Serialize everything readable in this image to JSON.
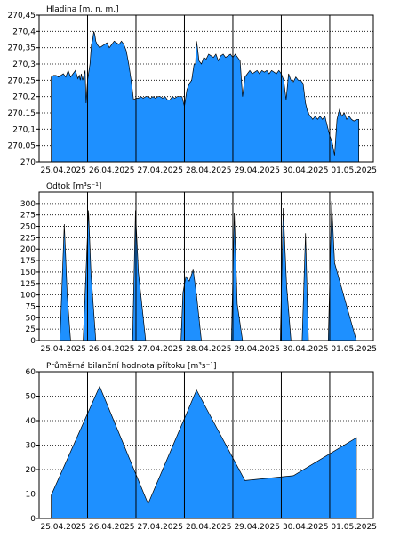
{
  "chart_data": [
    {
      "type": "area",
      "title": "Hladina [m. n. m.]",
      "ylim": [
        270,
        270.45
      ],
      "yticks": [
        270,
        270.05,
        270.1,
        270.15,
        270.2,
        270.25,
        270.3,
        270.35,
        270.4,
        270.45
      ],
      "ytick_labels": [
        "270",
        "270,05",
        "270,1",
        "270,15",
        "270,2",
        "270,25",
        "270,3",
        "270,35",
        "270,4",
        "270,45"
      ],
      "x_labels": [
        "25.04.2025",
        "26.04.2025",
        "27.04.2025",
        "28.04.2025",
        "29.04.2025",
        "30.04.2025",
        "01.05.2025"
      ],
      "xlim": [
        -0.25,
        6.65
      ],
      "grid": true,
      "fill_color": "#1e90ff",
      "x": [
        0.0,
        0.05,
        0.1,
        0.15,
        0.2,
        0.25,
        0.3,
        0.35,
        0.4,
        0.45,
        0.5,
        0.55,
        0.58,
        0.6,
        0.62,
        0.65,
        0.7,
        0.72,
        0.75,
        0.8,
        0.83,
        0.85,
        0.88,
        0.9,
        0.92,
        0.95,
        1.0,
        1.05,
        1.1,
        1.15,
        1.2,
        1.25,
        1.3,
        1.35,
        1.4,
        1.45,
        1.5,
        1.55,
        1.6,
        1.65,
        1.7,
        1.75,
        1.8,
        1.85,
        1.9,
        1.95,
        2.0,
        2.05,
        2.1,
        2.15,
        2.2,
        2.25,
        2.3,
        2.35,
        2.4,
        2.45,
        2.5,
        2.55,
        2.6,
        2.65,
        2.7,
        2.75,
        2.8,
        2.85,
        2.9,
        2.93,
        2.95,
        2.98,
        3.0,
        3.02,
        3.05,
        3.1,
        3.15,
        3.2,
        3.25,
        3.3,
        3.35,
        3.4,
        3.45,
        3.5,
        3.55,
        3.6,
        3.65,
        3.7,
        3.75,
        3.8,
        3.85,
        3.9,
        3.95,
        4.0,
        4.05,
        4.1,
        4.15,
        4.2,
        4.25,
        4.3,
        4.35,
        4.4,
        4.45,
        4.5,
        4.55,
        4.6,
        4.65,
        4.7,
        4.75,
        4.8,
        4.85,
        4.9,
        4.95,
        5.0,
        5.05,
        5.1,
        5.15,
        5.2,
        5.25,
        5.3,
        5.35,
        5.4,
        5.45,
        5.5,
        5.55,
        5.6,
        5.65,
        5.7,
        5.75,
        5.8,
        5.85,
        5.9,
        5.95,
        6.0,
        6.05,
        6.1,
        6.15,
        6.2,
        6.25,
        6.3,
        6.35
      ],
      "values": [
        270.26,
        270.265,
        270.265,
        270.26,
        270.265,
        270.27,
        270.26,
        270.28,
        270.26,
        270.27,
        270.28,
        270.255,
        270.265,
        270.25,
        270.27,
        270.25,
        270.28,
        270.18,
        270.25,
        270.3,
        270.36,
        270.37,
        270.4,
        270.39,
        270.37,
        270.36,
        270.35,
        270.355,
        270.36,
        270.365,
        270.35,
        270.36,
        270.37,
        270.365,
        270.36,
        270.37,
        270.36,
        270.34,
        270.3,
        270.25,
        270.19,
        270.195,
        270.195,
        270.2,
        270.195,
        270.2,
        270.2,
        270.195,
        270.2,
        270.195,
        270.2,
        270.2,
        270.195,
        270.2,
        270.19,
        270.19,
        270.2,
        270.195,
        270.2,
        270.2,
        270.2,
        270.17,
        270.22,
        270.24,
        270.25,
        270.28,
        270.3,
        270.3,
        270.37,
        270.35,
        270.31,
        270.3,
        270.32,
        270.315,
        270.33,
        270.325,
        270.32,
        270.33,
        270.31,
        270.325,
        270.33,
        270.32,
        270.325,
        270.33,
        270.32,
        270.33,
        270.32,
        270.31,
        270.2,
        270.26,
        270.27,
        270.28,
        270.27,
        270.275,
        270.28,
        270.27,
        270.28,
        270.275,
        270.28,
        270.27,
        270.28,
        270.275,
        270.27,
        270.28,
        270.27,
        270.25,
        270.19,
        270.27,
        270.25,
        270.245,
        270.26,
        270.25,
        270.25,
        270.24,
        270.18,
        270.15,
        270.14,
        270.13,
        270.14,
        270.13,
        270.14,
        270.13,
        270.14,
        270.11,
        270.08,
        270.06,
        270.02,
        270.13,
        270.16,
        270.14,
        270.15,
        270.13,
        270.14,
        270.13,
        270.125,
        270.13,
        270.13
      ]
    },
    {
      "type": "area",
      "title": "Odtok [m³s⁻¹]",
      "ylim": [
        0,
        325
      ],
      "yticks": [
        0,
        25,
        50,
        75,
        100,
        125,
        150,
        175,
        200,
        225,
        250,
        275,
        300
      ],
      "ytick_labels": [
        "0",
        "25",
        "50",
        "75",
        "100",
        "125",
        "150",
        "175",
        "200",
        "225",
        "250",
        "275",
        "300"
      ],
      "x_labels": [
        "25.04.2025",
        "26.04.2025",
        "27.04.2025",
        "28.04.2025",
        "29.04.2025",
        "30.04.2025",
        "01.05.2025"
      ],
      "xlim": [
        -0.25,
        6.65
      ],
      "grid": true,
      "fill_color": "#1e90ff",
      "x": [
        0.0,
        0.18,
        0.27,
        0.33,
        0.4,
        0.5,
        0.6,
        0.66,
        0.77,
        0.82,
        0.92,
        1.0,
        1.5,
        1.68,
        1.74,
        1.8,
        1.95,
        2.5,
        2.68,
        2.72,
        2.78,
        2.85,
        2.93,
        3.0,
        3.1,
        3.5,
        3.72,
        3.78,
        3.84,
        3.95,
        4.5,
        4.73,
        4.79,
        4.86,
        4.95,
        5.18,
        5.25,
        5.31,
        5.4,
        5.5,
        5.6,
        5.72,
        5.79,
        5.85,
        6.3,
        6.35
      ],
      "values": [
        0,
        0,
        255,
        100,
        0,
        0,
        0,
        0,
        285,
        150,
        0,
        0,
        0,
        0,
        285,
        150,
        0,
        0,
        0,
        105,
        140,
        130,
        155,
        100,
        0,
        0,
        0,
        280,
        80,
        0,
        0,
        0,
        290,
        120,
        0,
        0,
        235,
        0,
        0,
        0,
        0,
        0,
        305,
        170,
        0,
        0
      ]
    },
    {
      "type": "area",
      "title": "Průměrná bilanční hodnota přítoku   [m³s⁻¹]",
      "ylim": [
        0,
        60
      ],
      "yticks": [
        0,
        10,
        20,
        30,
        40,
        50,
        60
      ],
      "ytick_labels": [
        "0",
        "10",
        "20",
        "30",
        "40",
        "50",
        "60"
      ],
      "x_labels": [
        "25.04.2025",
        "26.04.2025",
        "27.04.2025",
        "28.04.2025",
        "29.04.2025",
        "30.04.2025",
        "01.05.2025"
      ],
      "xlim": [
        -0.25,
        6.65
      ],
      "grid": true,
      "fill_color": "#1e90ff",
      "x": [
        0,
        1,
        2,
        3,
        4,
        5,
        6.3
      ],
      "values": [
        9.5,
        54,
        6,
        52.5,
        15.5,
        17.5,
        33
      ]
    }
  ]
}
